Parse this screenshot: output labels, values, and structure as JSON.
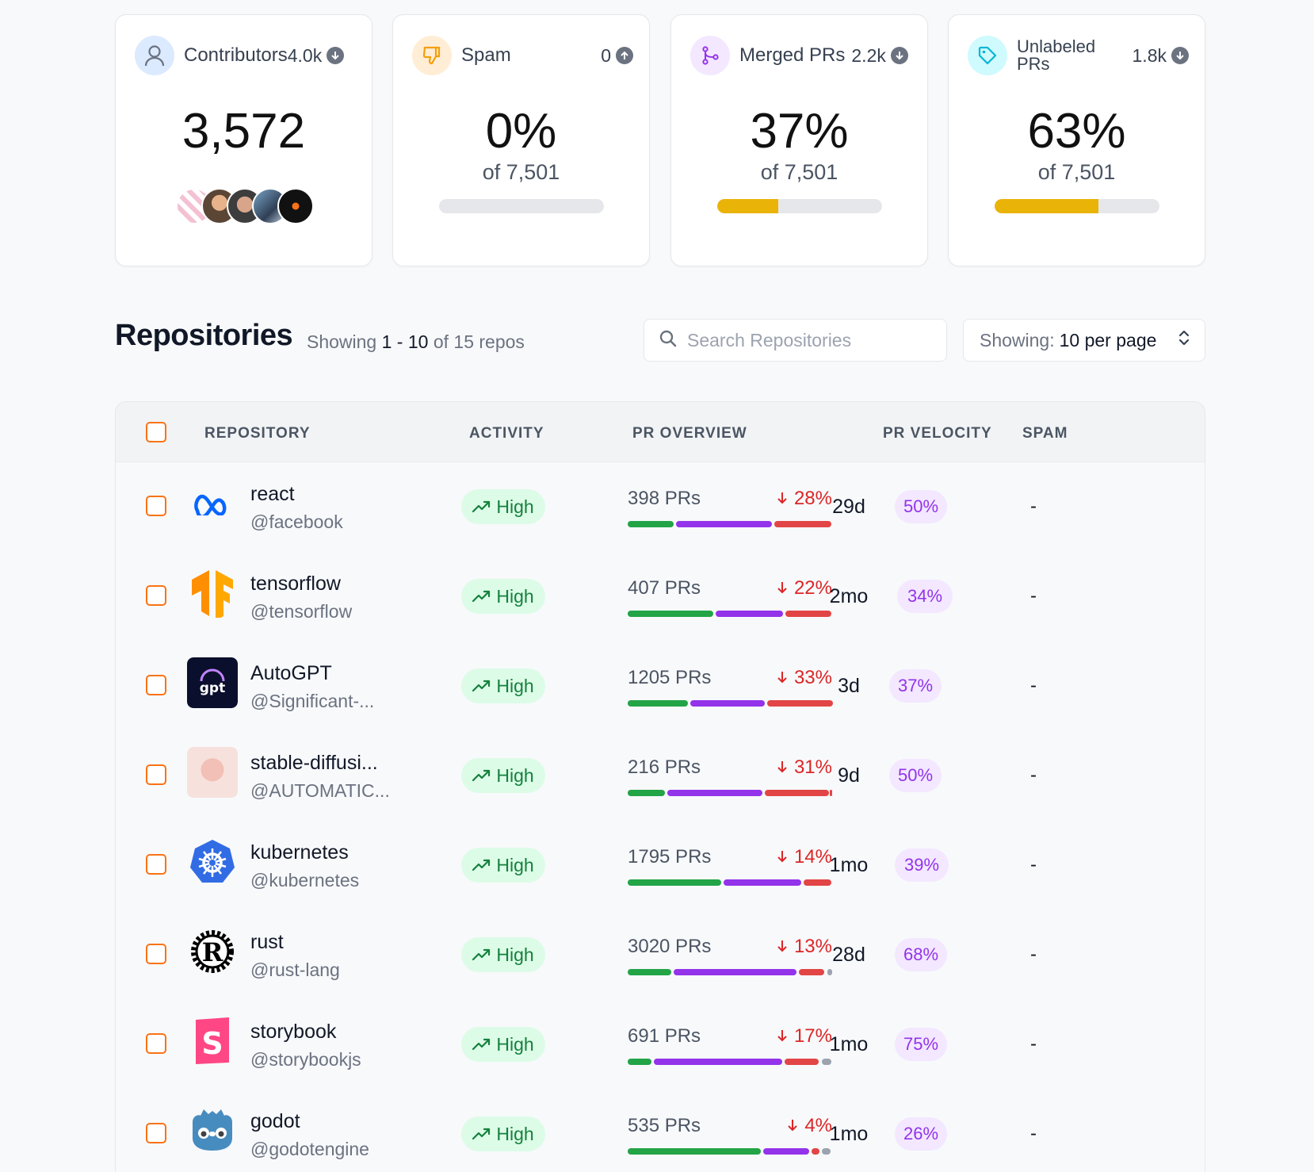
{
  "cards": [
    {
      "label": "Contributors",
      "count": "4.0k",
      "value": "3,572"
    },
    {
      "label": "Spam",
      "count": "0",
      "value": "0%",
      "of": "of 7,501",
      "progress": 0
    },
    {
      "label": "Merged PRs",
      "count": "2.2k",
      "value": "37%",
      "of": "of 7,501",
      "progress": 37
    },
    {
      "label_line1": "Unlabeled",
      "label_line2": "PRs",
      "count": "1.8k",
      "value": "63%",
      "of": "of 7,501",
      "progress": 63
    }
  ],
  "repos_header": {
    "title": "Repositories",
    "showing_prefix": "Showing",
    "range": "1 - 10",
    "suffix": "of 15 repos",
    "search_placeholder": "Search Repositories",
    "per_page_label": "Showing:",
    "per_page_value": "10 per page"
  },
  "columns": [
    "REPOSITORY",
    "ACTIVITY",
    "PR OVERVIEW",
    "PR VELOCITY",
    "SPAM"
  ],
  "rows": [
    {
      "name": "react",
      "org": "@facebook",
      "activity": "High",
      "prs": "398 PRs",
      "change": "28%",
      "velocity": "29d",
      "velocity_pct": "50%",
      "spam": "-"
    },
    {
      "name": "tensorflow",
      "org": "@tensorflow",
      "activity": "High",
      "prs": "407 PRs",
      "change": "22%",
      "velocity": "2mo",
      "velocity_pct": "34%",
      "spam": "-"
    },
    {
      "name": "AutoGPT",
      "org": "@Significant-...",
      "activity": "High",
      "prs": "1205 PRs",
      "change": "33%",
      "velocity": "3d",
      "velocity_pct": "37%",
      "spam": "-"
    },
    {
      "name": "stable-diffusi...",
      "org": "@AUTOMATIC...",
      "activity": "High",
      "prs": "216 PRs",
      "change": "31%",
      "velocity": "9d",
      "velocity_pct": "50%",
      "spam": "-"
    },
    {
      "name": "kubernetes",
      "org": "@kubernetes",
      "activity": "High",
      "prs": "1795 PRs",
      "change": "14%",
      "velocity": "1mo",
      "velocity_pct": "39%",
      "spam": "-"
    },
    {
      "name": "rust",
      "org": "@rust-lang",
      "activity": "High",
      "prs": "3020 PRs",
      "change": "13%",
      "velocity": "28d",
      "velocity_pct": "68%",
      "spam": "-"
    },
    {
      "name": "storybook",
      "org": "@storybookjs",
      "activity": "High",
      "prs": "691 PRs",
      "change": "17%",
      "velocity": "1mo",
      "velocity_pct": "75%",
      "spam": "-"
    },
    {
      "name": "godot",
      "org": "@godotengine",
      "activity": "High",
      "prs": "535 PRs",
      "change": "4%",
      "velocity": "1mo",
      "velocity_pct": "26%",
      "spam": "-"
    }
  ],
  "colors": {
    "accent": "#eab308",
    "merged": "#22a447",
    "open": "#9333ea",
    "closed": "#e24545",
    "draft": "#9ca3af"
  }
}
